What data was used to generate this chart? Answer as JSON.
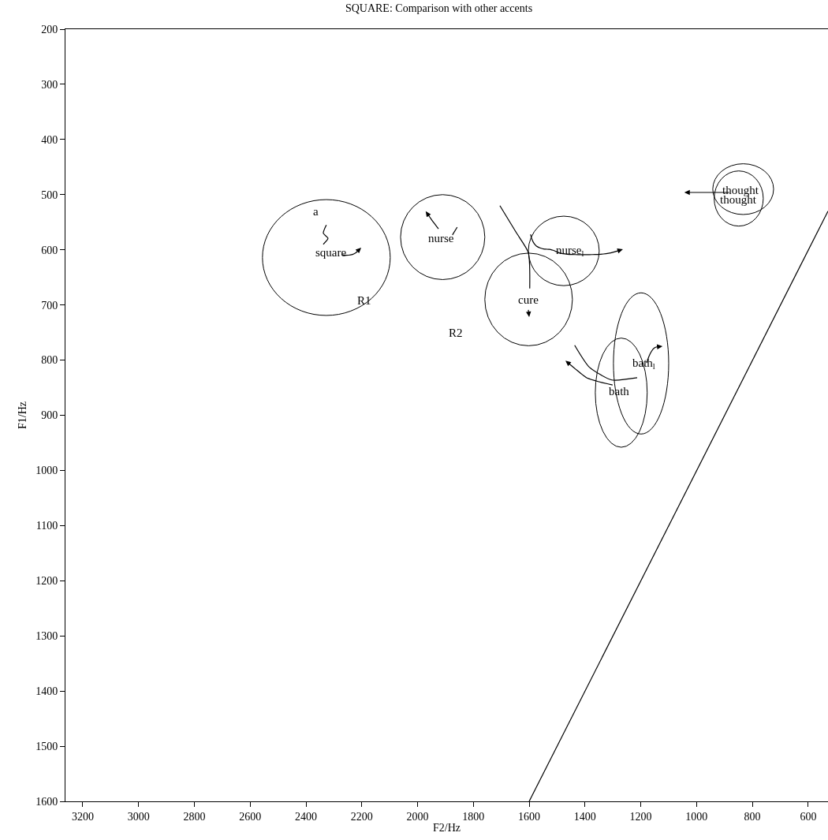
{
  "chart_data": {
    "type": "line",
    "title": "SQUARE: Comparison with other accents",
    "xlabel": "F2/Hz",
    "ylabel": "F1/Hz",
    "xlim": [
      3262,
      529
    ],
    "xticks": [
      3200,
      3000,
      2800,
      2600,
      2400,
      2200,
      2000,
      1800,
      1600,
      1400,
      1200,
      1000,
      800,
      600
    ],
    "ylim": [
      1600,
      200
    ],
    "yticks": [
      200,
      300,
      400,
      500,
      600,
      700,
      800,
      900,
      1000,
      1100,
      1200,
      1300,
      1400,
      1500,
      1600
    ],
    "grid": false,
    "series": [
      {
        "color": "#000000",
        "x": [
          2327,
          2338,
          2321,
          2338
        ],
        "values": [
          555,
          570,
          579,
          590
        ]
      },
      {
        "color": "#000000",
        "x": [
          1858,
          1875
        ],
        "values": [
          559,
          573
        ]
      },
      {
        "color": "#000000",
        "x": [
          1705,
          1646,
          1603,
          1598
        ],
        "values": [
          520,
          569,
          605,
          670
        ]
      },
      {
        "color": "#000000",
        "x": [
          1437,
          1384,
          1304,
          1213
        ],
        "values": [
          773,
          813,
          836,
          832
        ]
      },
      {
        "color": "#000000",
        "x": [
          1600,
          529
        ],
        "values": [
          1600,
          530
        ]
      }
    ],
    "annotations": [
      "square",
      "a",
      "nurse",
      "cure",
      "nurse$_{l}$",
      "bath",
      "bath$_{l}$",
      "thought",
      "thought",
      "R1",
      "R2"
    ]
  }
}
